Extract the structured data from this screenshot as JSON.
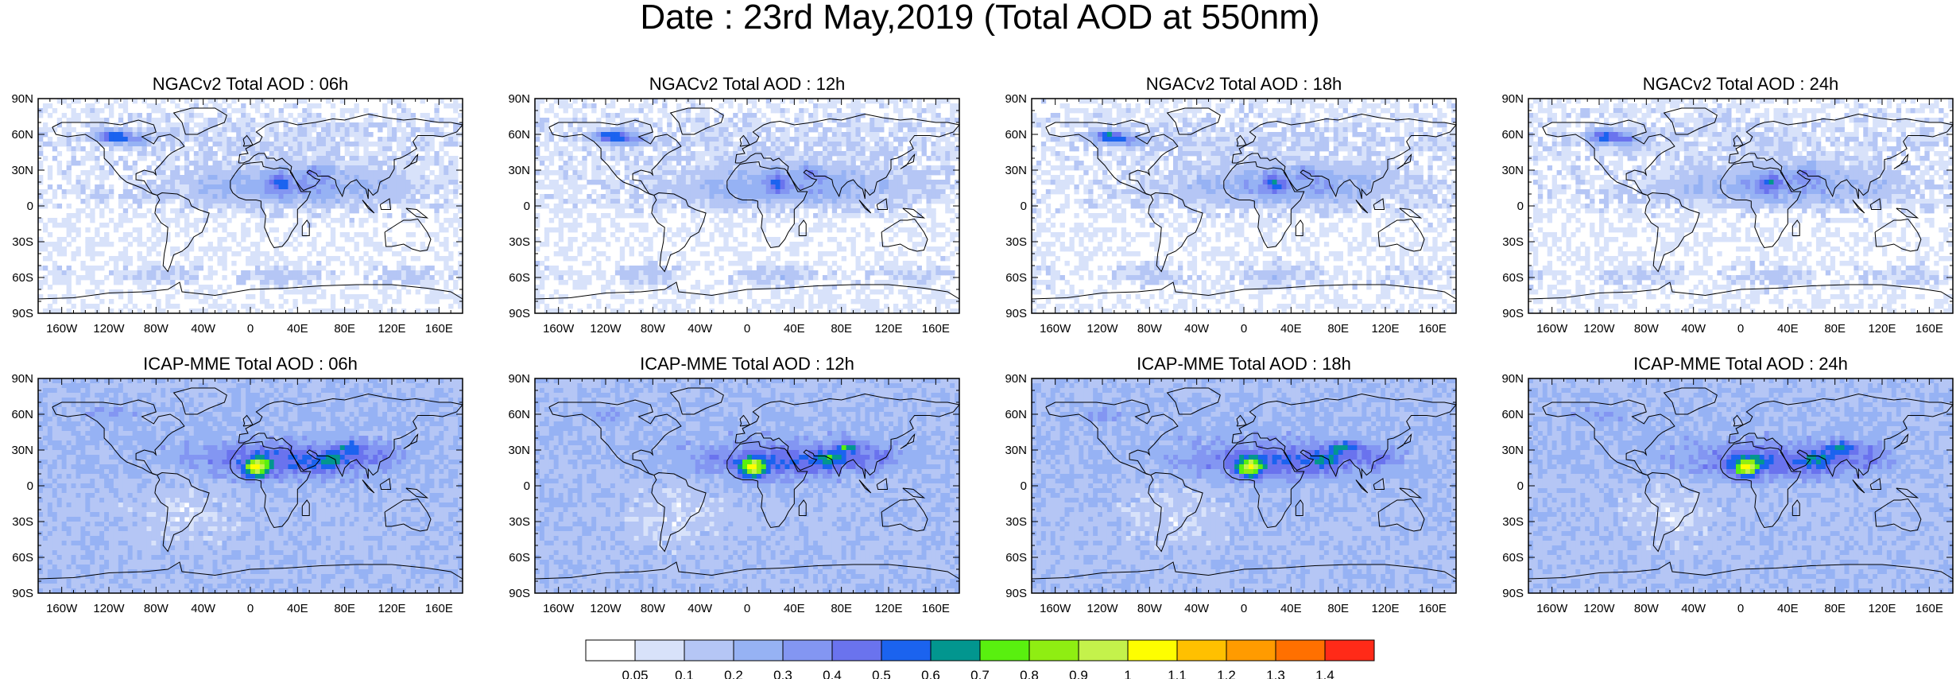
{
  "title": "Date : 23rd May,2019 (Total AOD at 550nm)",
  "lat_labels": [
    "90N",
    "60N",
    "30N",
    "0",
    "30S",
    "60S",
    "90S"
  ],
  "lon_labels": [
    "160W",
    "120W",
    "80W",
    "40W",
    "0",
    "40E",
    "80E",
    "120E",
    "160E"
  ],
  "panels": [
    {
      "title": "NGACv2 Total AOD : 06h",
      "model": "NGACv2",
      "hour": "06h"
    },
    {
      "title": "NGACv2 Total AOD : 12h",
      "model": "NGACv2",
      "hour": "12h"
    },
    {
      "title": "NGACv2 Total AOD : 18h",
      "model": "NGACv2",
      "hour": "18h"
    },
    {
      "title": "NGACv2 Total AOD : 24h",
      "model": "NGACv2",
      "hour": "24h"
    },
    {
      "title": "ICAP-MME Total AOD : 06h",
      "model": "ICAP-MME",
      "hour": "06h"
    },
    {
      "title": "ICAP-MME Total AOD : 12h",
      "model": "ICAP-MME",
      "hour": "12h"
    },
    {
      "title": "ICAP-MME Total AOD : 18h",
      "model": "ICAP-MME",
      "hour": "18h"
    },
    {
      "title": "ICAP-MME Total AOD : 24h",
      "model": "ICAP-MME",
      "hour": "24h"
    }
  ],
  "colorbar": {
    "labels": [
      "0.05",
      "0.1",
      "0.2",
      "0.3",
      "0.4",
      "0.5",
      "0.6",
      "0.7",
      "0.8",
      "0.9",
      "1",
      "1.1",
      "1.2",
      "1.3",
      "1.4"
    ],
    "colors": [
      "#ffffff",
      "#d8e2fa",
      "#b5c6f5",
      "#96b2f4",
      "#8396f2",
      "#6a73ee",
      "#1b63ef",
      "#02968f",
      "#59f00f",
      "#8fee12",
      "#c4f24b",
      "#fefe00",
      "#ffc000",
      "#ff9b00",
      "#ff7000",
      "#ff2a18"
    ]
  }
}
